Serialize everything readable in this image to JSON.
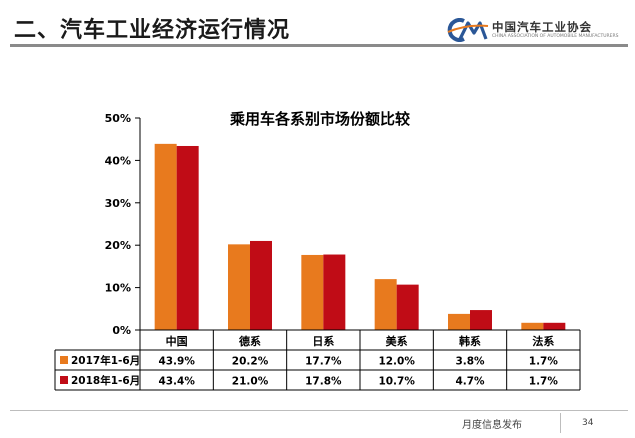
{
  "slide": {
    "title": "二、汽车工业经济运行情况",
    "logo_zh": "中国汽车工业协会",
    "logo_en": "CHINA ASSOCIATION OF AUTOMOBILE MANUFACTURERS",
    "footer_text": "月度信息发布",
    "page_number": "34"
  },
  "colors": {
    "series1": "#E87A1E",
    "series2": "#C00C16",
    "logo_blue": "#2B5797",
    "logo_orange": "#E87A1E"
  },
  "icons": {
    "logo": "caam-logo-icon"
  },
  "chart_data": {
    "type": "bar",
    "title": "乘用车各系别市场份额比较",
    "categories": [
      "中国",
      "德系",
      "日系",
      "美系",
      "韩系",
      "法系"
    ],
    "series": [
      {
        "name": "2017年1-6月",
        "values": [
          43.9,
          20.2,
          17.7,
          12.0,
          3.8,
          1.7
        ],
        "labels": [
          "43.9%",
          "20.2%",
          "17.7%",
          "12.0%",
          "3.8%",
          "1.7%"
        ]
      },
      {
        "name": "2018年1-6月",
        "values": [
          43.4,
          21.0,
          17.8,
          10.7,
          4.7,
          1.7
        ],
        "labels": [
          "43.4%",
          "21.0%",
          "17.8%",
          "10.7%",
          "4.7%",
          "1.7%"
        ]
      }
    ],
    "y_ticks": [
      "0%",
      "10%",
      "20%",
      "30%",
      "40%",
      "50%"
    ],
    "ylim": [
      0,
      50
    ],
    "xlabel": "",
    "ylabel": "",
    "grid": false,
    "legend": "data-table"
  }
}
